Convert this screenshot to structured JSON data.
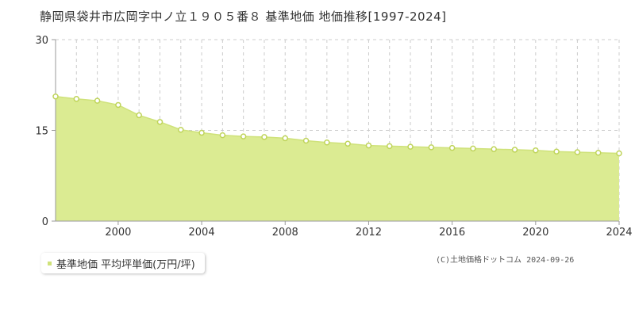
{
  "header": {
    "title": "静岡県袋井市広岡字中ノ立１９０５番８ 基準地価 地価推移[1997-2024]"
  },
  "legend": {
    "label": "基準地価 平均坪単価(万円/坪)"
  },
  "footer": {
    "copyright": "(C)土地価格ドットコム 2024-09-26"
  },
  "colors": {
    "area_fill": "#dbeb92",
    "line": "#cfe27a",
    "marker_stroke": "#bfd45a",
    "marker_fill": "#ffffff",
    "axis": "#999999",
    "grid": "#cccccc"
  },
  "chart_data": {
    "type": "area",
    "title": "静岡県袋井市広岡字中ノ立１９０５番８ 基準地価 地価推移[1997-2024]",
    "series": [
      {
        "name": "基準地価 平均坪単価(万円/坪)",
        "x": [
          1997,
          1998,
          1999,
          2000,
          2001,
          2002,
          2003,
          2004,
          2005,
          2006,
          2007,
          2008,
          2009,
          2010,
          2011,
          2012,
          2013,
          2014,
          2015,
          2016,
          2017,
          2018,
          2019,
          2020,
          2021,
          2022,
          2023,
          2024
        ],
        "values": [
          20.6,
          20.2,
          19.9,
          19.2,
          17.5,
          16.4,
          15.1,
          14.6,
          14.2,
          14.0,
          13.9,
          13.7,
          13.3,
          13.0,
          12.8,
          12.5,
          12.4,
          12.3,
          12.2,
          12.1,
          12.0,
          11.9,
          11.8,
          11.7,
          11.5,
          11.4,
          11.3,
          11.2
        ]
      }
    ],
    "xlim": [
      1997,
      2024
    ],
    "ylim": [
      0,
      30
    ],
    "x_ticks": [
      2000,
      2004,
      2008,
      2012,
      2016,
      2020,
      2024
    ],
    "x_tick_labels": [
      "2000",
      "2004",
      "2008",
      "2012",
      "2016",
      "2020",
      "2024"
    ],
    "y_ticks": [
      0,
      15,
      30
    ],
    "y_tick_labels": [
      "0",
      "15",
      "30"
    ],
    "vertical_grid": "every year",
    "legend_position": "bottom-left"
  }
}
